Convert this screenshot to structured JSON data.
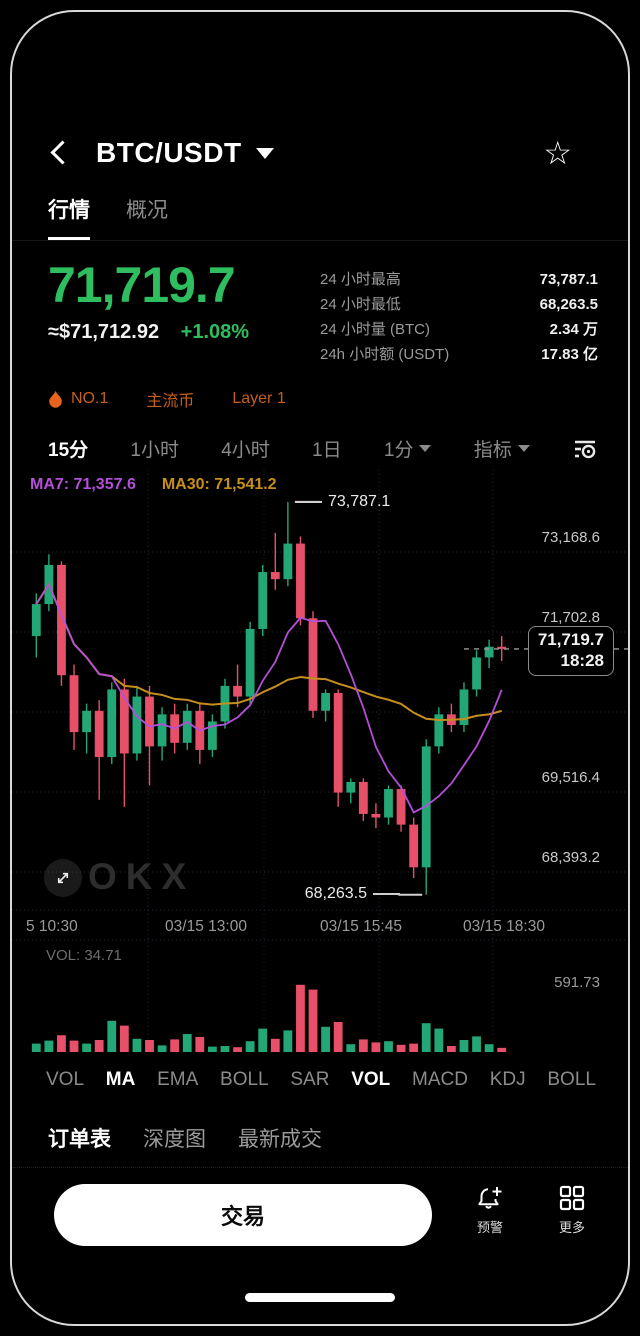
{
  "header": {
    "title": "BTC/USDT"
  },
  "tabs": [
    {
      "label": "行情"
    },
    {
      "label": "概况"
    }
  ],
  "price": {
    "last": "71,719.7",
    "approx": "≈$71,712.92",
    "change": "+1.08%"
  },
  "stats": [
    {
      "label": "24 小时最高",
      "value": "73,787.1"
    },
    {
      "label": "24 小时最低",
      "value": "68,263.5"
    },
    {
      "label": "24 小时量 (BTC)",
      "value": "2.34 万"
    },
    {
      "label": "24h 小时额 (USDT)",
      "value": "17.83 亿"
    }
  ],
  "badges": {
    "rank": "NO.1",
    "tag1": "主流币",
    "tag2": "Layer 1"
  },
  "timeframes": [
    "15分",
    "1小时",
    "4小时",
    "1日",
    "1分",
    "指标"
  ],
  "indicators": [
    {
      "label": "VOL",
      "active": false
    },
    {
      "label": "MA",
      "active": true
    },
    {
      "label": "EMA",
      "active": false
    },
    {
      "label": "BOLL",
      "active": false
    },
    {
      "label": "SAR",
      "active": false
    },
    {
      "label": "VOL",
      "active": true
    },
    {
      "label": "MACD",
      "active": false
    },
    {
      "label": "KDJ",
      "active": false
    },
    {
      "label": "BOLL",
      "active": false
    }
  ],
  "bottom_tabs": [
    {
      "label": "订单表"
    },
    {
      "label": "深度图"
    },
    {
      "label": "最新成交"
    }
  ],
  "actions": {
    "trade": "交易",
    "alert": "预警",
    "more": "更多"
  },
  "watermark": "OKX",
  "colors": {
    "up": "#23a777",
    "down": "#e8506a",
    "accent_green": "#2ebd5f",
    "badge_orange": "#c2601d",
    "flame": "#e8631c",
    "ma7": "#b44fd8",
    "ma30": "#c68f1b",
    "grid": "#232833"
  },
  "chart_data": {
    "type": "candlestick",
    "timeframe": "15分",
    "title": "BTC/USDT 15m candlestick with MA7/MA30 and volume",
    "ylim": [
      68050,
      74150
    ],
    "vol_axis_max": 600,
    "y_axis_labels": [
      "73,168.6",
      "71,702.8",
      "69,516.4",
      "68,393.2"
    ],
    "x_axis_labels": [
      "5 10:30",
      "03/15 13:00",
      "03/15 15:45",
      "03/15 18:30"
    ],
    "ma_legend": {
      "ma7": "MA7: 71,357.6",
      "ma30": "MA30: 71,541.2"
    },
    "annotations": {
      "high": "73,787.1",
      "low": "68,263.5",
      "last_price": "71,719.7",
      "last_time": "18:28"
    },
    "vol_label": "VOL: 34.71",
    "vol_scale_label": "591.73",
    "legend_position": "top-left",
    "grid": true,
    "candles": [
      [
        71900,
        72500,
        71600,
        72350
      ],
      [
        72350,
        73050,
        72250,
        72900
      ],
      [
        72900,
        72950,
        71200,
        71350
      ],
      [
        71350,
        71500,
        70300,
        70550
      ],
      [
        70550,
        70950,
        70250,
        70850
      ],
      [
        70850,
        71000,
        69600,
        70200
      ],
      [
        70200,
        71250,
        70100,
        71150
      ],
      [
        71150,
        71300,
        69500,
        70250
      ],
      [
        70250,
        71200,
        70150,
        71050
      ],
      [
        71050,
        71200,
        69800,
        70350
      ],
      [
        70350,
        70900,
        70150,
        70800
      ],
      [
        70800,
        70950,
        70250,
        70400
      ],
      [
        70400,
        70950,
        70300,
        70850
      ],
      [
        70850,
        70950,
        70100,
        70300
      ],
      [
        70300,
        70800,
        70200,
        70700
      ],
      [
        70700,
        71300,
        70600,
        71200
      ],
      [
        71200,
        71500,
        70900,
        71050
      ],
      [
        71050,
        72100,
        70950,
        72000
      ],
      [
        72000,
        72900,
        71900,
        72800
      ],
      [
        72800,
        73350,
        72550,
        72700
      ],
      [
        72700,
        73787.1,
        72600,
        73200
      ],
      [
        73200,
        73300,
        72050,
        72150
      ],
      [
        72150,
        72250,
        70750,
        70850
      ],
      [
        70850,
        71150,
        70700,
        71100
      ],
      [
        71100,
        71150,
        69500,
        69700
      ],
      [
        69700,
        69900,
        69550,
        69850
      ],
      [
        69850,
        69900,
        69300,
        69400
      ],
      [
        69400,
        69550,
        69200,
        69350
      ],
      [
        69350,
        69800,
        69250,
        69750
      ],
      [
        69750,
        69800,
        69150,
        69250
      ],
      [
        69250,
        69350,
        68500,
        68650
      ],
      [
        68650,
        70450,
        68263.5,
        70350
      ],
      [
        70350,
        70900,
        70250,
        70800
      ],
      [
        70800,
        70950,
        70550,
        70650
      ],
      [
        70650,
        71250,
        70550,
        71150
      ],
      [
        71150,
        71700,
        71050,
        71600
      ],
      [
        71600,
        71850,
        71450,
        71750
      ],
      [
        71750,
        71900,
        71550,
        71719.7
      ]
    ],
    "volumes": [
      70,
      95,
      140,
      95,
      70,
      100,
      260,
      220,
      110,
      100,
      55,
      105,
      150,
      125,
      45,
      50,
      40,
      90,
      195,
      110,
      180,
      560,
      520,
      210,
      250,
      65,
      105,
      80,
      90,
      60,
      70,
      240,
      195,
      50,
      100,
      130,
      65,
      34.71
    ]
  }
}
